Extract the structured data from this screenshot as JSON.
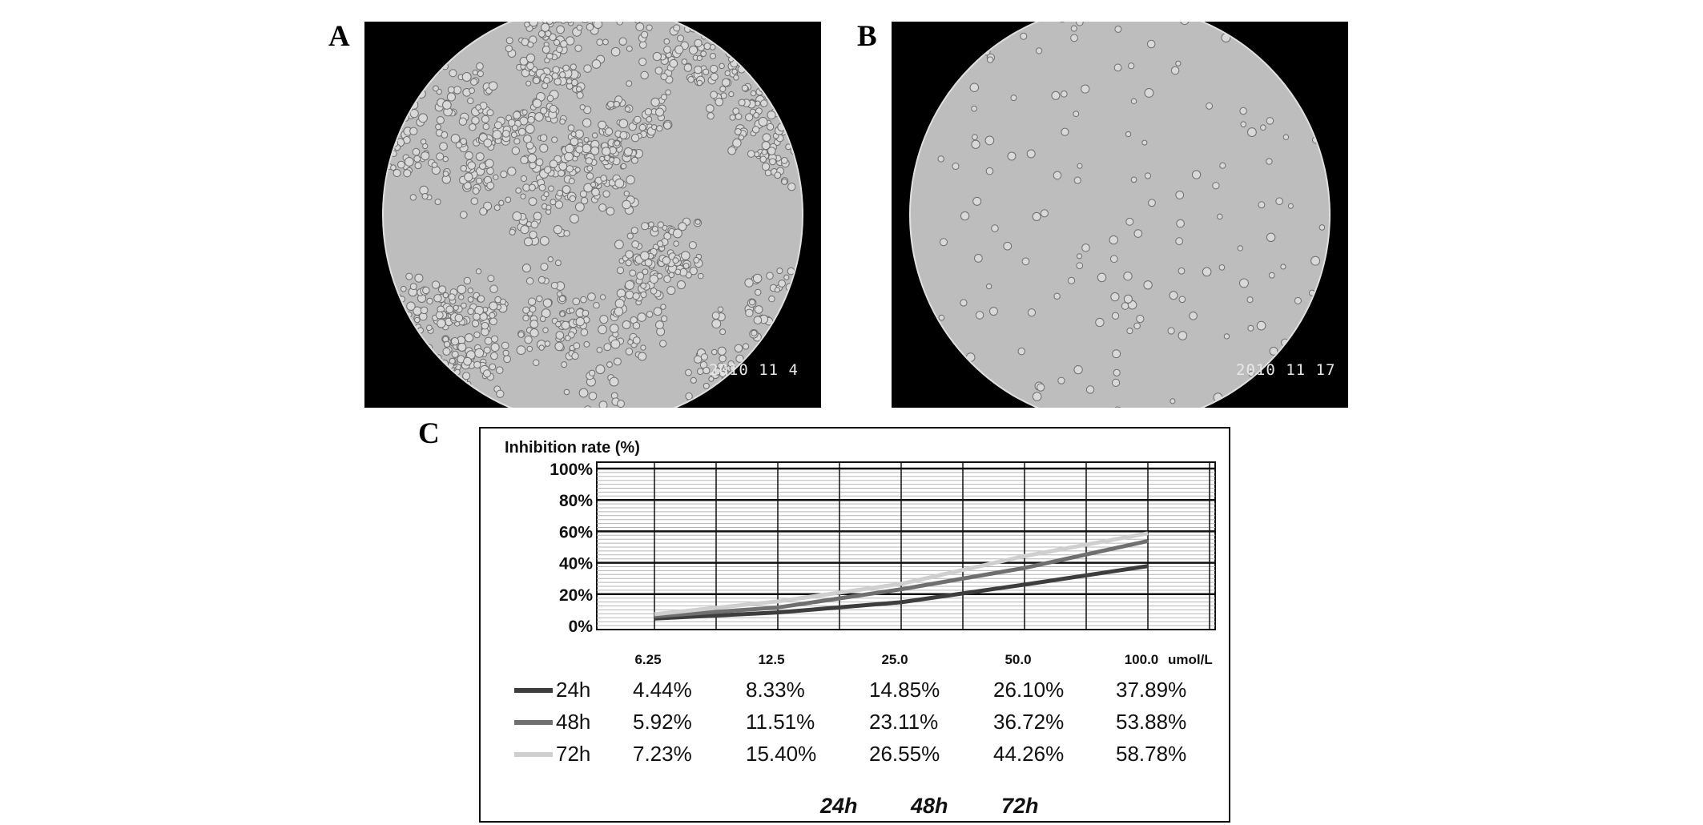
{
  "panels": {
    "a": {
      "letter": "A",
      "date_stamp": "2010 11 4"
    },
    "b": {
      "letter": "B",
      "date_stamp": "2010 11 17"
    },
    "c": {
      "letter": "C"
    }
  },
  "chart_data": {
    "type": "line",
    "ylabel": "Inhibition rate (%)",
    "xlabel": "",
    "x_unit_label": "umol/L",
    "categories": [
      "6.25",
      "12.5",
      "25.0",
      "50.0",
      "100.0"
    ],
    "yticks": [
      "100%",
      "80%",
      "60%",
      "40%",
      "20%",
      "0%"
    ],
    "ylim": [
      0,
      100
    ],
    "grid": true,
    "legend_position": "bottom-left table",
    "series": [
      {
        "name": "24h",
        "color": "#3d3d3d",
        "values": [
          4.44,
          8.33,
          14.85,
          26.1,
          37.89
        ],
        "labels": [
          "4.44%",
          "8.33%",
          "14.85%",
          "26.10%",
          "37.89%"
        ]
      },
      {
        "name": "48h",
        "color": "#6f6f6f",
        "values": [
          5.92,
          11.51,
          23.11,
          36.72,
          53.88
        ],
        "labels": [
          "5.92%",
          "11.51%",
          "23.11%",
          "36.72%",
          "53.88%"
        ]
      },
      {
        "name": "72h",
        "color": "#cfcfcf",
        "values": [
          7.23,
          15.4,
          26.55,
          44.26,
          58.78
        ],
        "labels": [
          "7.23%",
          "15.40%",
          "26.55%",
          "44.26%",
          "58.78%"
        ]
      }
    ],
    "bottom_legend": [
      "24h",
      "48h",
      "72h"
    ]
  }
}
